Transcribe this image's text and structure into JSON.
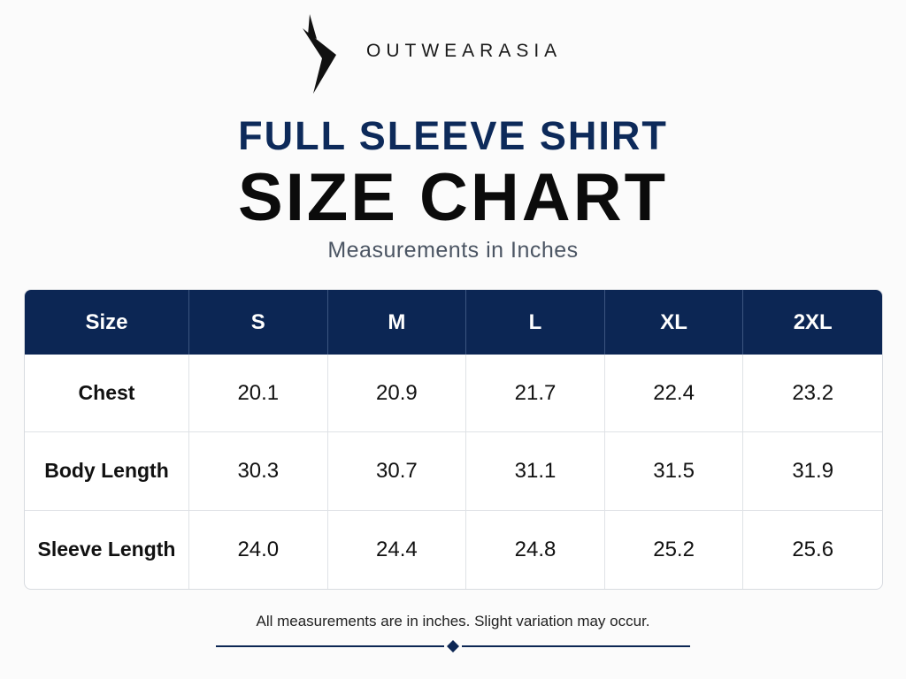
{
  "brand": "OUTWEARASIA",
  "header": {
    "title": "FULL SLEEVE SHIRT",
    "subtitle": "SIZE CHART",
    "note": "Measurements in Inches"
  },
  "table": {
    "columns": [
      "Size",
      "S",
      "M",
      "L",
      "XL",
      "2XL"
    ],
    "rows": [
      [
        "Chest",
        "20.1",
        "20.9",
        "21.7",
        "22.4",
        "23.2"
      ],
      [
        "Body Length",
        "30.3",
        "30.7",
        "31.1",
        "31.5",
        "31.9"
      ],
      [
        "Sleeve Length",
        "24.0",
        "24.4",
        "24.8",
        "25.2",
        "25.6"
      ]
    ]
  },
  "footer": "All measurements are in inches. Slight variation may occur."
}
